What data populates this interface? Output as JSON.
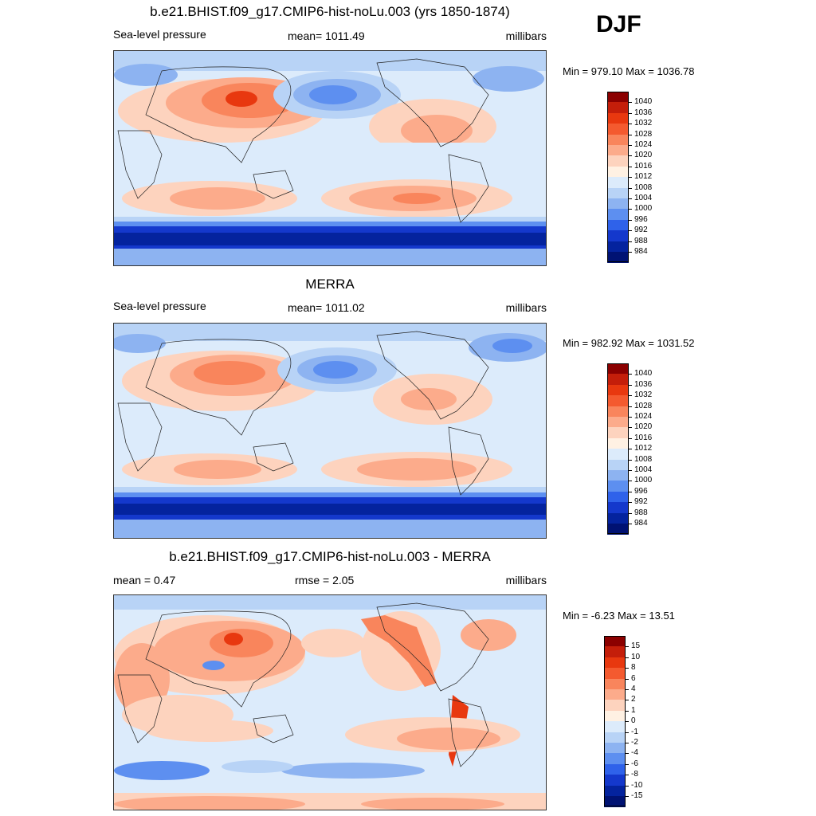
{
  "season": "DJF",
  "panels": [
    {
      "title": "b.e21.BHIST.f09_g17.CMIP6-hist-noLu.003 (yrs 1850-1874)",
      "left_label": "Sea-level pressure",
      "center_label": "mean= 1011.49",
      "right_label": "millibars",
      "minmax": "Min = 979.10 Max = 1036.78",
      "kind": "abs"
    },
    {
      "title": "MERRA",
      "left_label": "Sea-level pressure",
      "center_label": "mean= 1011.02",
      "right_label": "millibars",
      "minmax": "Min = 982.92 Max = 1031.52",
      "kind": "abs"
    },
    {
      "title": "b.e21.BHIST.f09_g17.CMIP6-hist-noLu.003 - MERRA",
      "left_label": "mean =   0.47",
      "center_label": "rmse =   2.05",
      "right_label": "millibars",
      "minmax": "Min =  -6.23 Max =  13.51",
      "kind": "diff"
    }
  ],
  "colorbars": {
    "abs": {
      "labels": [
        "1040",
        "1036",
        "1032",
        "1028",
        "1024",
        "1020",
        "1016",
        "1012",
        "1008",
        "1004",
        "1000",
        "996",
        "992",
        "988",
        "984"
      ],
      "colors": [
        "#8b0000",
        "#c41e0a",
        "#e8380f",
        "#f45a2f",
        "#f9855c",
        "#fcab8b",
        "#fdd3be",
        "#fff1e3",
        "#dcebfb",
        "#b8d3f6",
        "#8db3f1",
        "#5d8ff0",
        "#2f62ea",
        "#1438cc",
        "#04239e",
        "#001273"
      ]
    },
    "diff": {
      "labels": [
        "15",
        "10",
        "8",
        "6",
        "4",
        "2",
        "1",
        "0",
        "-1",
        "-2",
        "-4",
        "-6",
        "-8",
        "-10",
        "-15"
      ],
      "colors": [
        "#8b0000",
        "#c41e0a",
        "#e8380f",
        "#f45a2f",
        "#f9855c",
        "#fcab8b",
        "#fdd3be",
        "#fff1e3",
        "#dcebfb",
        "#b8d3f6",
        "#8db3f1",
        "#5d8ff0",
        "#2f62ea",
        "#1438cc",
        "#04239e",
        "#001273"
      ]
    }
  }
}
